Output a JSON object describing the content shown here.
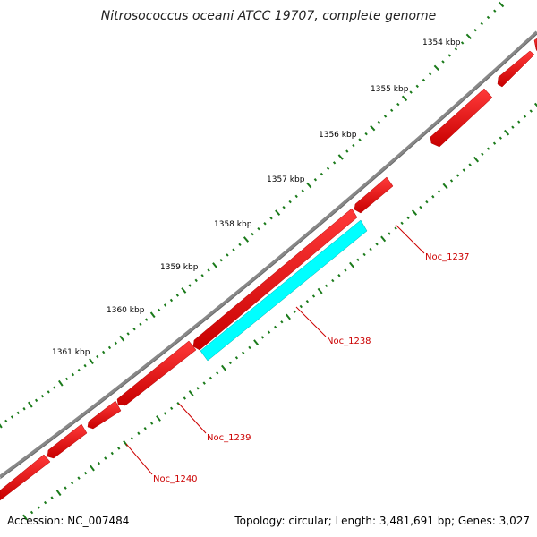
{
  "title": "Nitrosococcus oceani ATCC 19707, complete genome",
  "footer": {
    "accession": "Accession: NC_007484",
    "summary": "Topology: circular; Length: 3,481,691 bp; Genes: 3,027"
  },
  "colors": {
    "backbone": "#888888",
    "gene_default": "#ff0000",
    "gene_highlight": "#00ffff",
    "gene_label": "#cc0000",
    "ticks": "#1a7a1a"
  },
  "ticks": [
    "1354 kbp",
    "1355 kbp",
    "1356 kbp",
    "1357 kbp",
    "1358 kbp",
    "1359 kbp",
    "1360 kbp",
    "1361 kbp"
  ],
  "genes": [
    {
      "label": "Noc_1237",
      "highlight": false
    },
    {
      "label": "Noc_1238",
      "highlight": true
    },
    {
      "label": "Noc_1239",
      "highlight": false
    },
    {
      "label": "Noc_1240",
      "highlight": false
    }
  ]
}
